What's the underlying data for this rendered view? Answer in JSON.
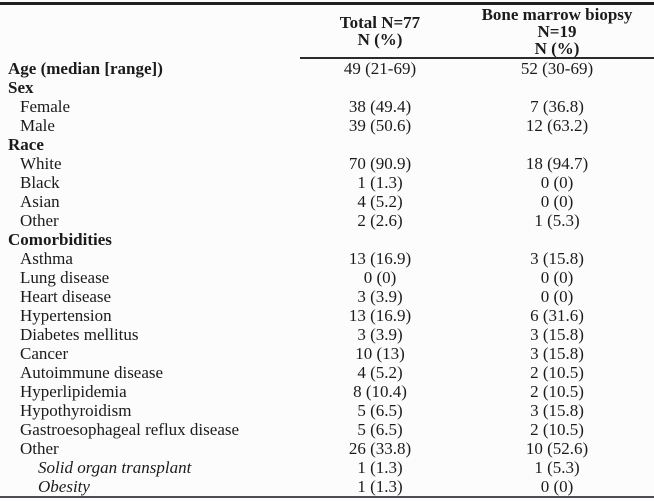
{
  "table": {
    "header": {
      "total": [
        "Total N=77",
        "N (%)"
      ],
      "biopsy": [
        "Bone marrow biopsy",
        "N=19",
        "N (%)"
      ]
    },
    "rows": [
      {
        "label": "Age (median [range])",
        "style": "section",
        "total": "49 (21-69)",
        "biopsy": "52 (30-69)"
      },
      {
        "label": "Sex",
        "style": "section",
        "total": "",
        "biopsy": ""
      },
      {
        "label": "Female",
        "style": "item",
        "total": "38 (49.4)",
        "biopsy": "7 (36.8)"
      },
      {
        "label": "Male",
        "style": "item",
        "total": "39 (50.6)",
        "biopsy": "12 (63.2)"
      },
      {
        "label": "Race",
        "style": "section",
        "total": "",
        "biopsy": ""
      },
      {
        "label": "White",
        "style": "item",
        "total": "70 (90.9)",
        "biopsy": "18 (94.7)"
      },
      {
        "label": "Black",
        "style": "item",
        "total": "1 (1.3)",
        "biopsy": "0 (0)"
      },
      {
        "label": "Asian",
        "style": "item",
        "total": "4 (5.2)",
        "biopsy": "0 (0)"
      },
      {
        "label": "Other",
        "style": "item",
        "total": "2 (2.6)",
        "biopsy": "1 (5.3)"
      },
      {
        "label": "Comorbidities",
        "style": "section",
        "total": "",
        "biopsy": ""
      },
      {
        "label": "Asthma",
        "style": "item",
        "total": "13 (16.9)",
        "biopsy": "3 (15.8)"
      },
      {
        "label": "Lung disease",
        "style": "item",
        "total": "0 (0)",
        "biopsy": "0 (0)"
      },
      {
        "label": "Heart disease",
        "style": "item",
        "total": "3 (3.9)",
        "biopsy": "0 (0)"
      },
      {
        "label": "Hypertension",
        "style": "item",
        "total": "13 (16.9)",
        "biopsy": "6 (31.6)"
      },
      {
        "label": "Diabetes mellitus",
        "style": "item",
        "total": "3 (3.9)",
        "biopsy": "3 (15.8)"
      },
      {
        "label": "Cancer",
        "style": "item",
        "total": "10 (13)",
        "biopsy": "3 (15.8)"
      },
      {
        "label": "Autoimmune disease",
        "style": "item",
        "total": "4 (5.2)",
        "biopsy": "2 (10.5)"
      },
      {
        "label": "Hyperlipidemia",
        "style": "item",
        "total": "8 (10.4)",
        "biopsy": "2 (10.5)"
      },
      {
        "label": "Hypothyroidism",
        "style": "item",
        "total": "5 (6.5)",
        "biopsy": "3 (15.8)"
      },
      {
        "label": "Gastroesophageal reflux disease",
        "style": "item",
        "total": "5 (6.5)",
        "biopsy": "2 (10.5)"
      },
      {
        "label": "Other",
        "style": "item",
        "total": "26 (33.8)",
        "biopsy": "10 (52.6)"
      },
      {
        "label": "Solid organ transplant",
        "style": "subitem",
        "total": "1 (1.3)",
        "biopsy": "1 (5.3)"
      },
      {
        "label": "Obesity",
        "style": "subitem",
        "total": "1 (1.3)",
        "biopsy": "0 (0)"
      }
    ],
    "rule_color": "#1f1f1f"
  }
}
